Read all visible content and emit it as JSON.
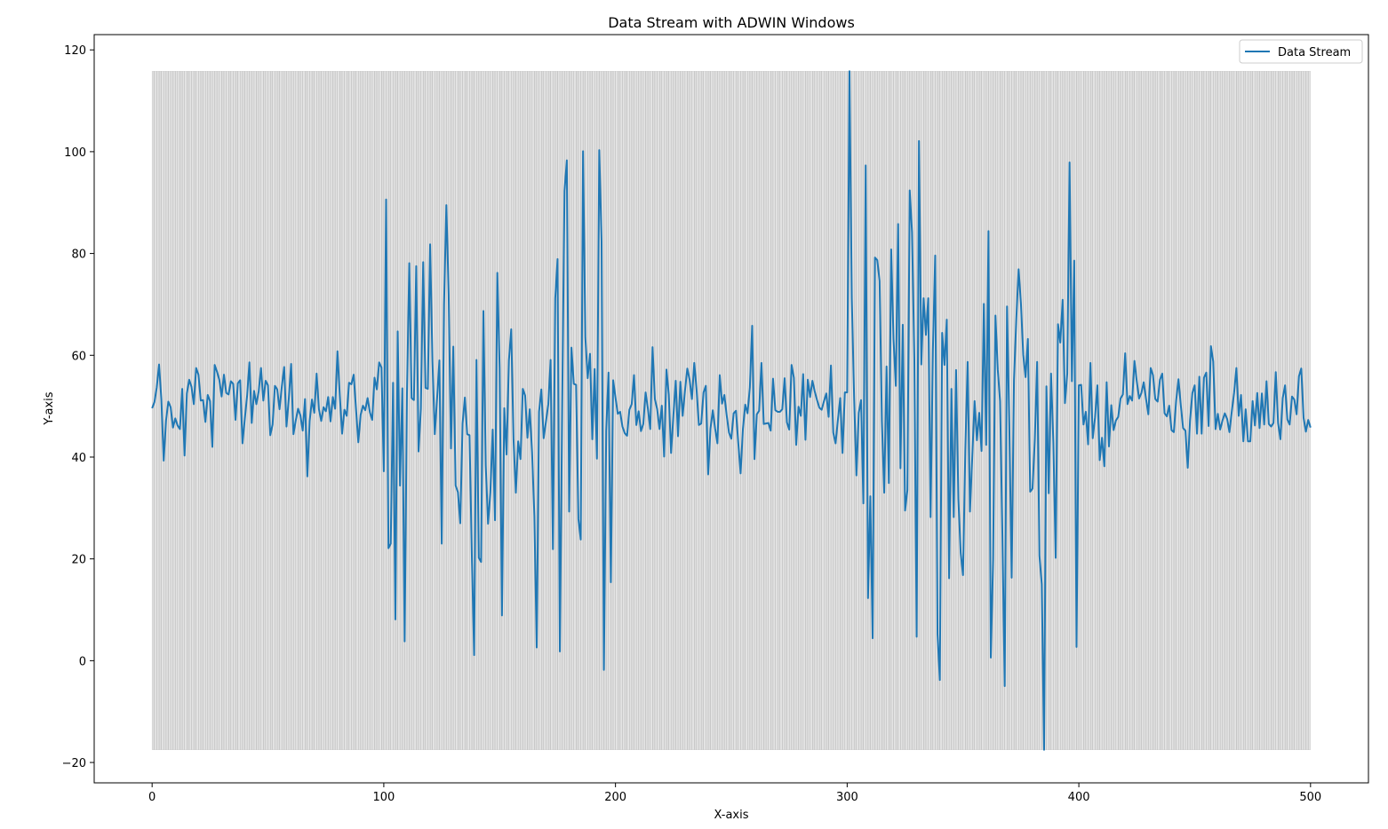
{
  "chart_data": {
    "type": "line",
    "title": "Data Stream with ADWIN Windows",
    "xlabel": "X-axis",
    "ylabel": "Y-axis",
    "xlim": [
      -25,
      525
    ],
    "ylim": [
      -24,
      123
    ],
    "xticks": [
      0,
      100,
      200,
      300,
      400,
      500
    ],
    "yticks": [
      -20,
      0,
      20,
      40,
      60,
      80,
      100,
      120
    ],
    "legend": {
      "position": "top-right",
      "entries": [
        "Data Stream"
      ]
    },
    "colors": {
      "line": "#1f77b4",
      "window_fill": "#808080",
      "window_edge": "#999999"
    },
    "grid": false,
    "windows": {
      "x_start": 0,
      "x_end": 499,
      "y_low": -17.5,
      "y_high": 115.8,
      "band_count": 500
    },
    "series": [
      {
        "name": "Data Stream",
        "x_start": 0,
        "values": [
          49.6,
          50.8,
          53.7,
          58.2,
          51.3,
          39.3,
          47.2,
          50.9,
          49.8,
          45.8,
          47.6,
          46.2,
          45.5,
          53.4,
          40.3,
          52.5,
          55.2,
          53.8,
          50.4,
          57.5,
          56.2,
          51.1,
          51.2,
          46.9,
          52.2,
          51.0,
          42.0,
          58.1,
          56.8,
          55.2,
          51.9,
          56.2,
          52.6,
          52.3,
          54.9,
          54.4,
          47.3,
          54.5,
          55.1,
          42.7,
          47.5,
          52.0,
          58.6,
          46.7,
          53.0,
          50.4,
          52.9,
          57.5,
          51.1,
          55.0,
          54.1,
          44.3,
          46.4,
          54.0,
          53.3,
          49.4,
          53.9,
          57.7,
          46.0,
          51.5,
          58.3,
          44.5,
          47.2,
          49.5,
          48.2,
          45.2,
          51.4,
          36.2,
          47.1,
          51.3,
          48.7,
          56.4,
          49.4,
          47.1,
          49.8,
          49.0,
          51.8,
          47.0,
          51.8,
          49.5,
          60.8,
          52.2,
          44.6,
          49.3,
          48.1,
          54.6,
          54.3,
          56.2,
          49.5,
          42.9,
          48.3,
          50.1,
          49.2,
          51.6,
          48.8,
          47.3,
          55.6,
          53.3,
          58.6,
          57.6,
          37.2,
          90.6,
          22.1,
          23.0,
          54.6,
          8.1,
          64.7,
          34.4,
          53.5,
          3.8,
          52.4,
          78.1,
          51.6,
          51.2,
          77.5,
          41.1,
          49.5,
          78.3,
          53.6,
          53.4,
          81.8,
          58.9,
          44.5,
          51.6,
          59.0,
          23.0,
          70.0,
          89.5,
          72.1,
          41.7,
          61.7,
          34.4,
          33.1,
          27.0,
          46.6,
          51.7,
          44.5,
          44.3,
          20.7,
          1.1,
          59.1,
          20.2,
          19.4,
          68.7,
          38.4,
          26.9,
          33.1,
          45.4,
          27.6,
          76.2,
          57.5,
          8.9,
          49.6,
          40.5,
          59.0,
          65.1,
          43.4,
          33.0,
          43.1,
          39.6,
          53.4,
          52.1,
          43.8,
          49.4,
          40.9,
          28.4,
          2.6,
          48.9,
          53.3,
          43.7,
          47.0,
          50.4,
          59.1,
          21.9,
          71.2,
          78.9,
          1.8,
          50.3,
          92.3,
          98.3,
          29.3,
          61.5,
          54.4,
          54.2,
          27.8,
          23.8,
          100.1,
          63.5,
          55.5,
          60.3,
          43.5,
          57.3,
          39.7,
          100.3,
          82.4,
          -1.8,
          45.2,
          56.6,
          15.4,
          55.1,
          51.7,
          48.5,
          48.9,
          46.0,
          44.7,
          44.2,
          49.3,
          50.4,
          56.1,
          46.3,
          49.0,
          45.1,
          46.5,
          52.7,
          49.5,
          45.5,
          61.6,
          51.4,
          49.4,
          45.5,
          50.1,
          40.1,
          57.2,
          52.3,
          40.8,
          48.2,
          55.0,
          44.1,
          54.8,
          48.1,
          53.1,
          57.4,
          55.2,
          51.4,
          58.5,
          53.3,
          46.3,
          46.6,
          52.7,
          54.0,
          36.6,
          45.6,
          49.2,
          45.6,
          42.7,
          56.1,
          50.5,
          52.2,
          48.2,
          44.8,
          43.6,
          48.6,
          49.1,
          42.8,
          36.8,
          45.5,
          50.3,
          48.6,
          53.7,
          65.8,
          39.6,
          48.4,
          49.1,
          58.5,
          46.5,
          46.6,
          46.7,
          45.2,
          55.4,
          49.2,
          48.9,
          48.9,
          49.4,
          55.5,
          46.8,
          45.4,
          58.1,
          55.6,
          42.4,
          49.9,
          48.1,
          56.3,
          43.4,
          55.2,
          51.8,
          55.0,
          52.9,
          51.2,
          49.7,
          49.3,
          51.0,
          52.5,
          47.9,
          58.0,
          44.8,
          42.7,
          47.3,
          51.6,
          40.8,
          52.7,
          52.7,
          115.8,
          71.2,
          51.7,
          36.4,
          48.7,
          51.2,
          30.9,
          97.3,
          12.3,
          32.3,
          4.4,
          79.2,
          78.7,
          74.6,
          47.0,
          33.0,
          57.8,
          34.9,
          80.8,
          63.2,
          54.0,
          85.8,
          37.8,
          66.0,
          29.5,
          33.5,
          92.4,
          84.2,
          59.4,
          4.7,
          102.1,
          58.2,
          71.2,
          64.0,
          71.2,
          28.2,
          61.0,
          79.6,
          5.2,
          -3.8,
          64.4,
          58.1,
          67.0,
          16.2,
          53.4,
          28.2,
          57.1,
          31.8,
          21.2,
          16.8,
          41.4,
          58.7,
          29.3,
          40.1,
          51.0,
          43.3,
          48.7,
          41.2,
          70.1,
          42.4,
          84.4,
          0.6,
          19.9,
          67.8,
          57.2,
          51.0,
          24.9,
          -5.0,
          69.6,
          46.2,
          16.3,
          55.1,
          67.0,
          76.9,
          70.2,
          60.1,
          55.7,
          63.2,
          33.2,
          33.8,
          43.5,
          58.7,
          20.6,
          15.0,
          -17.5,
          53.9,
          32.9,
          56.4,
          42.8,
          20.2,
          66.1,
          62.5,
          70.9,
          50.6,
          56.4,
          97.9,
          54.9,
          78.6,
          2.7,
          54.1,
          54.2,
          46.4,
          48.9,
          42.5,
          58.5,
          43.7,
          47.8,
          54.1,
          39.4,
          43.8,
          38.2,
          54.7,
          42.1,
          50.2,
          45.3,
          47.2,
          47.9,
          51.5,
          52.3,
          60.4,
          50.4,
          52.0,
          51.1,
          58.9,
          54.9,
          51.5,
          52.6,
          54.7,
          51.4,
          48.4,
          57.5,
          56.1,
          51.4,
          50.9,
          55.2,
          56.4,
          48.6,
          48.0,
          50.1,
          45.3,
          44.9,
          51.1,
          55.3,
          50.2,
          45.7,
          45.2,
          37.9,
          47.2,
          52.6,
          54.1,
          44.6,
          55.8,
          44.6,
          55.6,
          56.6,
          46.1,
          61.8,
          58.8,
          45.5,
          48.5,
          45.4,
          47.2,
          48.6,
          47.5,
          44.9,
          48.9,
          52.6,
          57.5,
          48.1,
          52.2,
          43.1,
          49.4,
          43.1,
          43.1,
          51.0,
          46.2,
          52.6,
          45.7,
          52.5,
          46.4,
          54.9,
          46.5,
          46.0,
          46.7,
          56.7,
          46.7,
          43.5,
          51.6,
          54.1,
          47.4,
          46.4,
          51.9,
          51.3,
          48.4,
          55.9,
          57.4,
          47.7,
          45.0,
          47.3,
          45.8
        ]
      }
    ]
  }
}
